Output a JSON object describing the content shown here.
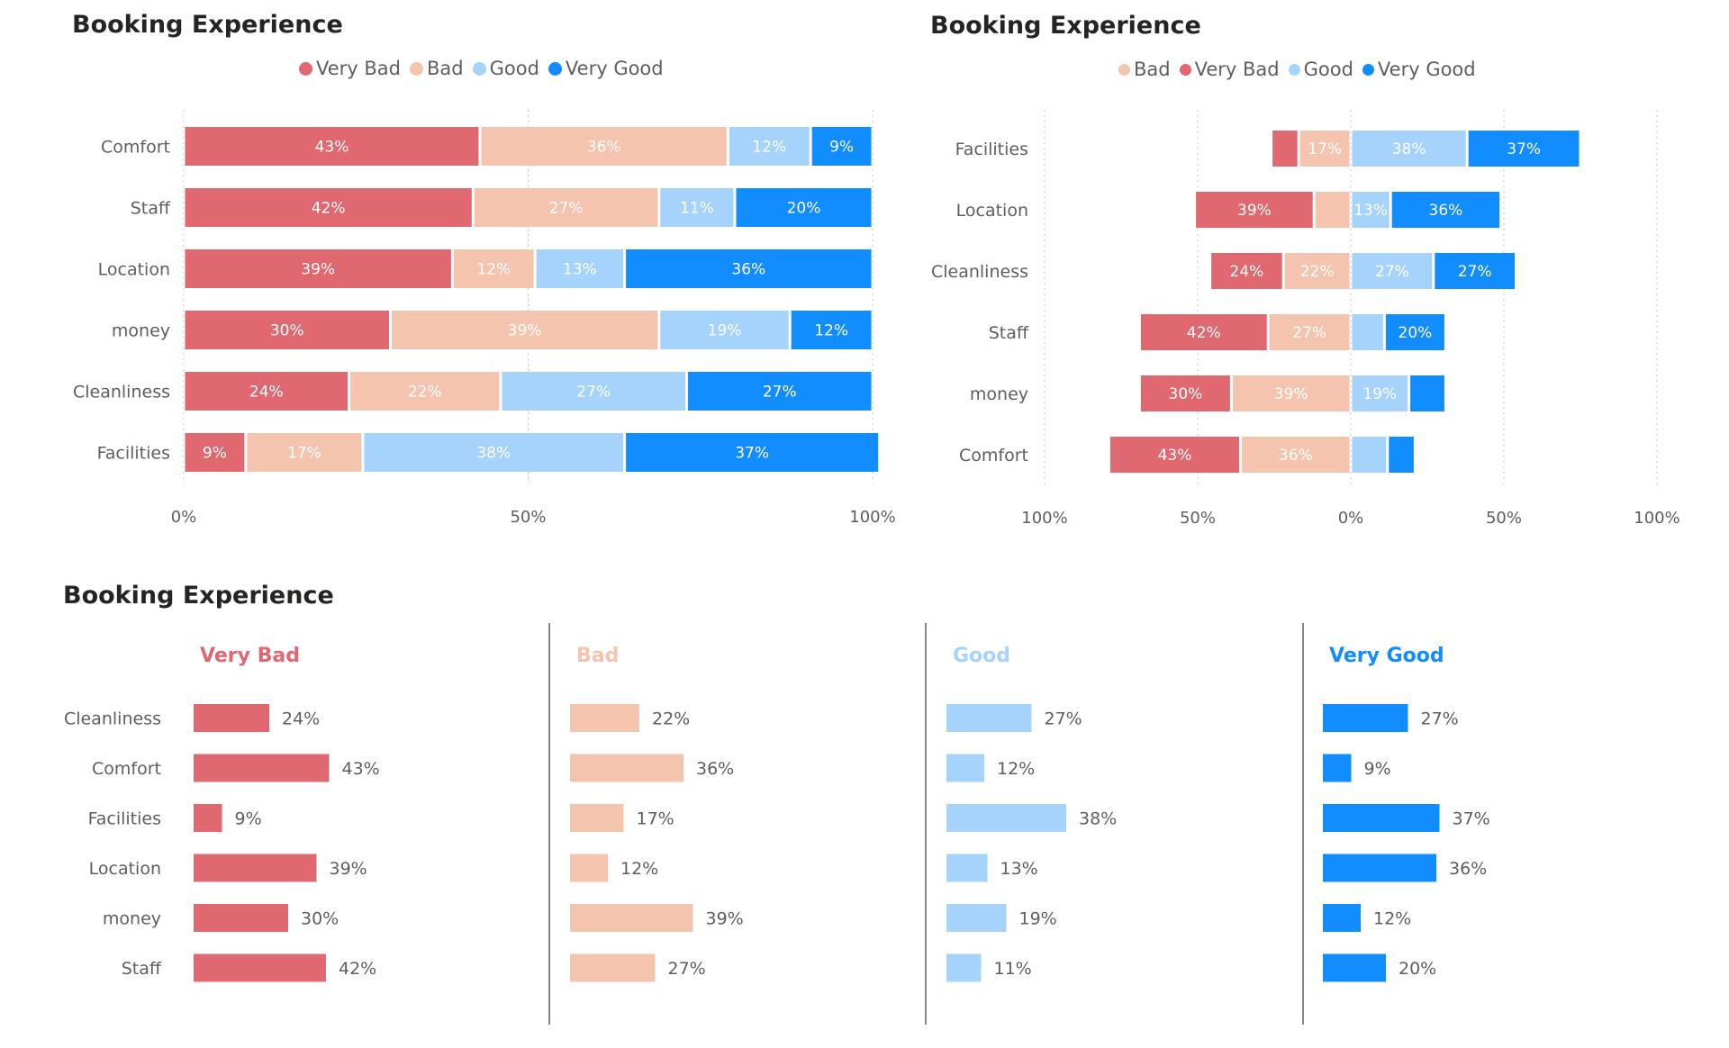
{
  "colors": {
    "very_bad": "#e06971",
    "bad": "#f4c4ae",
    "good": "#a5d3fc",
    "very_good": "#118dff"
  },
  "chart_data": [
    {
      "type": "bar",
      "orientation": "horizontal",
      "stacking": "100%",
      "title": "Booking Experience",
      "legend": [
        "Very Bad",
        "Bad",
        "Good",
        "Very Good"
      ],
      "legend_position": "top-center",
      "categories": [
        "Comfort",
        "Staff",
        "Location",
        "money",
        "Cleanliness",
        "Facilities"
      ],
      "series": [
        {
          "name": "Very Bad",
          "values": [
            43,
            42,
            39,
            30,
            24,
            9
          ]
        },
        {
          "name": "Bad",
          "values": [
            36,
            27,
            12,
            39,
            22,
            17
          ]
        },
        {
          "name": "Good",
          "values": [
            12,
            11,
            13,
            19,
            27,
            38
          ]
        },
        {
          "name": "Very Good",
          "values": [
            9,
            20,
            36,
            12,
            27,
            37
          ]
        }
      ],
      "x_ticks": [
        "0%",
        "50%",
        "100%"
      ],
      "xlim": [
        0,
        100
      ],
      "grid": true
    },
    {
      "type": "bar",
      "orientation": "horizontal",
      "stacking": "diverging",
      "title": "Booking Experience",
      "legend": [
        "Bad",
        "Very Bad",
        "Good",
        "Very Good"
      ],
      "legend_position": "top-center",
      "categories": [
        "Facilities",
        "Location",
        "Cleanliness",
        "Staff",
        "money",
        "Comfort"
      ],
      "series": [
        {
          "name": "Very Bad",
          "values": [
            9,
            39,
            24,
            42,
            30,
            43
          ]
        },
        {
          "name": "Bad",
          "values": [
            17,
            12,
            22,
            27,
            39,
            36
          ]
        },
        {
          "name": "Good",
          "values": [
            38,
            13,
            27,
            11,
            19,
            12
          ]
        },
        {
          "name": "Very Good",
          "values": [
            37,
            36,
            27,
            20,
            12,
            9
          ]
        }
      ],
      "x_ticks": [
        "100%",
        "50%",
        "0%",
        "50%",
        "100%"
      ],
      "xlim": [
        -100,
        100
      ],
      "grid": true
    },
    {
      "type": "bar",
      "orientation": "horizontal",
      "layout": "small-multiples",
      "title": "Booking Experience",
      "categories": [
        "Cleanliness",
        "Comfort",
        "Facilities",
        "Location",
        "money",
        "Staff"
      ],
      "panels": [
        {
          "name": "Very Bad",
          "values": [
            24,
            43,
            9,
            39,
            30,
            42
          ]
        },
        {
          "name": "Bad",
          "values": [
            22,
            36,
            17,
            12,
            39,
            27
          ]
        },
        {
          "name": "Good",
          "values": [
            27,
            12,
            38,
            13,
            19,
            11
          ]
        },
        {
          "name": "Very Good",
          "values": [
            27,
            9,
            37,
            36,
            12,
            20
          ]
        }
      ]
    }
  ]
}
